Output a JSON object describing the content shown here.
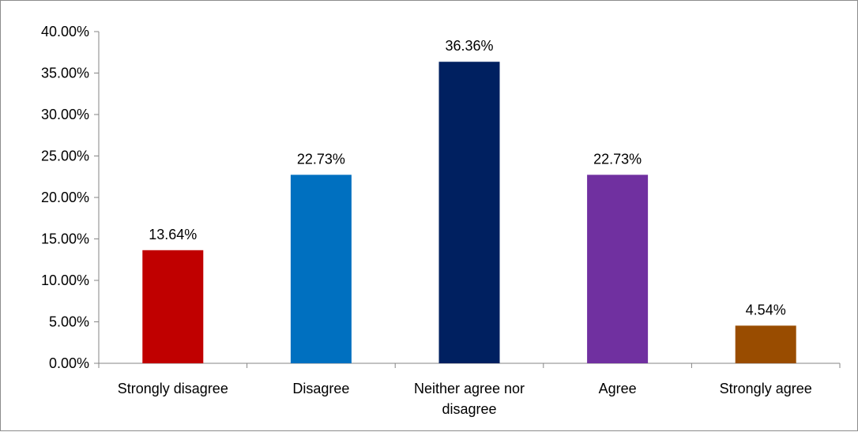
{
  "chart_data": {
    "type": "bar",
    "title": "",
    "xlabel": "",
    "ylabel": "",
    "categories": [
      "Strongly disagree",
      "Disagree",
      "Neither agree nor disagree",
      "Agree",
      "Strongly agree"
    ],
    "values": [
      13.64,
      22.73,
      36.36,
      22.73,
      4.54
    ],
    "data_labels": [
      "13.64%",
      "22.73%",
      "36.36%",
      "22.73%",
      "4.54%"
    ],
    "colors": [
      "#C00000",
      "#0070C0",
      "#002060",
      "#7030A0",
      "#994C00"
    ],
    "ylim": [
      0,
      40
    ],
    "yticks": [
      0,
      5,
      10,
      15,
      20,
      25,
      30,
      35,
      40
    ],
    "ytick_labels": [
      "0.00%",
      "5.00%",
      "10.00%",
      "15.00%",
      "20.00%",
      "25.00%",
      "30.00%",
      "35.00%",
      "40.00%"
    ],
    "grid": false,
    "legend": "none"
  }
}
